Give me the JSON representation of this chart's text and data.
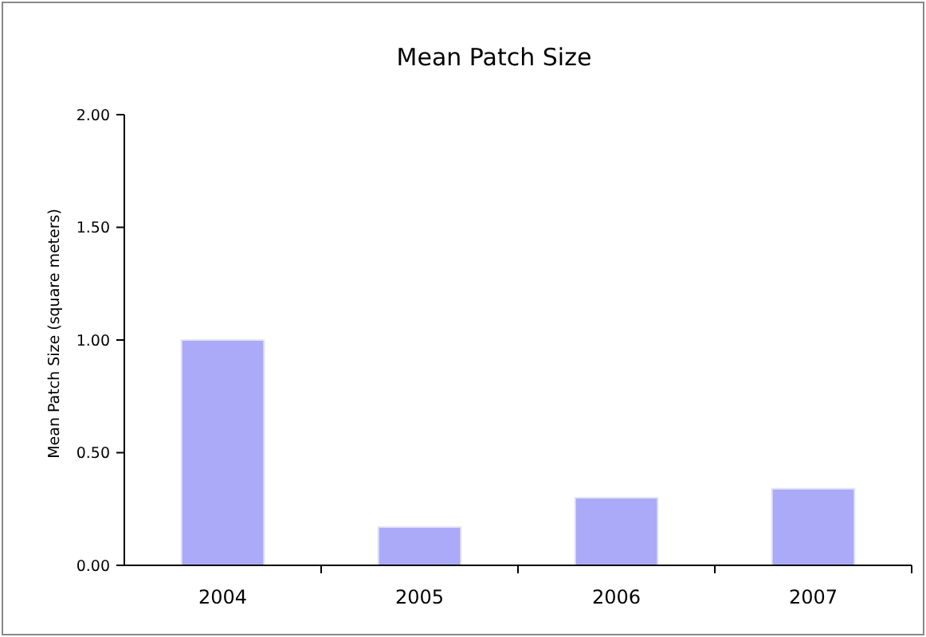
{
  "chart_data": {
    "type": "bar",
    "title": "Mean Patch Size",
    "ylabel": "Mean Patch Size (square meters)",
    "categories": [
      "2004",
      "2005",
      "2006",
      "2007"
    ],
    "values": [
      1.0,
      0.17,
      0.3,
      0.34
    ],
    "color": "#aaaaf8",
    "ylim": [
      0,
      2
    ],
    "yticks": [
      {
        "value": 0,
        "label": "0.00"
      },
      {
        "value": 0.5,
        "label": "0.50"
      },
      {
        "value": 1,
        "label": "1.00"
      },
      {
        "value": 1.5,
        "label": "1.50"
      },
      {
        "value": 2,
        "label": "2.00"
      }
    ],
    "grid": false
  }
}
